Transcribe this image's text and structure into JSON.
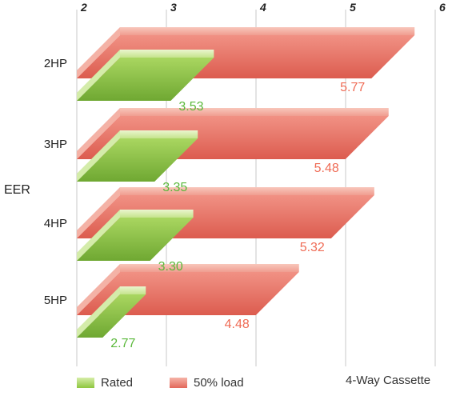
{
  "chart_data": {
    "type": "bar",
    "orientation": "horizontal",
    "style": "3d",
    "ylabel": "EER",
    "categories": [
      "2HP",
      "3HP",
      "4HP",
      "5HP"
    ],
    "xlim": [
      2,
      6
    ],
    "x_ticks": [
      "2",
      "3",
      "4",
      "5",
      "6"
    ],
    "grid": true,
    "legend_position": "bottom-left",
    "series": [
      {
        "name": "Rated",
        "values": [
          3.53,
          3.35,
          3.3,
          2.77
        ],
        "labels": [
          "3.53",
          "3.35",
          "3.30",
          "2.77"
        ],
        "color": "#8ec63f",
        "label_color": "#5ab83a"
      },
      {
        "name": "50% load",
        "values": [
          5.77,
          5.48,
          5.32,
          4.48
        ],
        "labels": [
          "5.77",
          "5.48",
          "5.32",
          "4.48"
        ],
        "color": "#e2675a",
        "label_color": "#ef6b55"
      }
    ],
    "annotation": "4-Way Cassette"
  }
}
